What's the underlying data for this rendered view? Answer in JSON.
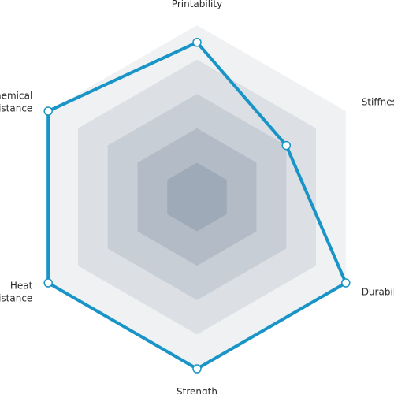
{
  "chart_data": {
    "type": "radar",
    "scale_max": 5,
    "rings": 5,
    "axes": [
      {
        "label": [
          "Printability"
        ]
      },
      {
        "label": [
          "Stiffness"
        ]
      },
      {
        "label": [
          "Durability"
        ]
      },
      {
        "label": [
          "Strength"
        ]
      },
      {
        "label": [
          "Heat",
          "Resistance"
        ]
      },
      {
        "label": [
          "Chemical",
          "resistance"
        ]
      }
    ],
    "series": [
      {
        "values": [
          4.5,
          3.0,
          5.0,
          5.0,
          5.0,
          5.0
        ],
        "color": "#1894c6"
      }
    ],
    "ring_colors": [
      "#f0f1f3",
      "#dcdfe4",
      "#c8ced5",
      "#b3bcc6",
      "#9eaab7"
    ]
  }
}
